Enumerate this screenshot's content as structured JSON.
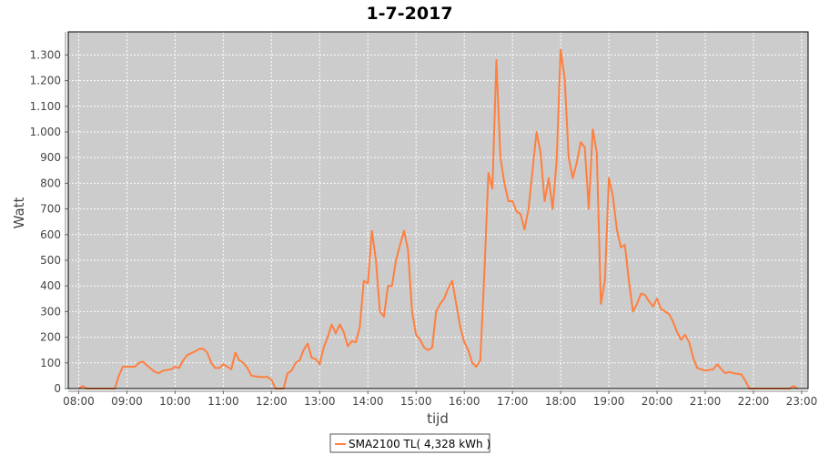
{
  "chart_data": {
    "type": "line",
    "title": "1-7-2017",
    "xlabel": "tijd",
    "ylabel": "Watt",
    "xlim": [
      "07:47",
      "23:08"
    ],
    "ylim": [
      0,
      1390
    ],
    "grid": true,
    "legend_placement": "bottom",
    "background_color": "#cccccc",
    "series_color": "#ff7f3f",
    "x_ticks": [
      "08:00",
      "09:00",
      "10:00",
      "11:00",
      "12:00",
      "13:00",
      "14:00",
      "15:00",
      "16:00",
      "17:00",
      "18:00",
      "19:00",
      "20:00",
      "21:00",
      "22:00",
      "23:00"
    ],
    "y_ticks": [
      0,
      100,
      200,
      300,
      400,
      500,
      600,
      700,
      800,
      900,
      1000,
      1100,
      1200,
      1300
    ],
    "y_tick_labels": [
      "0",
      "100",
      "200",
      "300",
      "400",
      "500",
      "600",
      "700",
      "800",
      "900",
      "1.000",
      "1.100",
      "1.200",
      "1.300"
    ],
    "series": [
      {
        "name": "SMA2100 TL( 4,328 kWh )",
        "x": [
          "08:00",
          "08:05",
          "08:10",
          "08:45",
          "08:50",
          "08:55",
          "09:00",
          "09:10",
          "09:15",
          "09:20",
          "09:25",
          "09:35",
          "09:40",
          "09:45",
          "09:55",
          "10:00",
          "10:05",
          "10:10",
          "10:15",
          "10:25",
          "10:30",
          "10:35",
          "10:40",
          "10:45",
          "10:50",
          "10:55",
          "11:00",
          "11:05",
          "11:10",
          "11:15",
          "11:20",
          "11:25",
          "11:30",
          "11:35",
          "11:45",
          "11:55",
          "12:00",
          "12:05",
          "12:15",
          "12:20",
          "12:25",
          "12:30",
          "12:35",
          "12:40",
          "12:45",
          "12:50",
          "12:55",
          "13:00",
          "13:05",
          "13:10",
          "13:15",
          "13:20",
          "13:25",
          "13:30",
          "13:35",
          "13:40",
          "13:45",
          "13:50",
          "13:55",
          "14:00",
          "14:05",
          "14:10",
          "14:15",
          "14:20",
          "14:25",
          "14:30",
          "14:35",
          "14:40",
          "14:45",
          "14:50",
          "14:55",
          "15:00",
          "15:05",
          "15:10",
          "15:15",
          "15:20",
          "15:25",
          "15:30",
          "15:35",
          "15:40",
          "15:45",
          "15:50",
          "15:55",
          "16:00",
          "16:05",
          "16:10",
          "16:15",
          "16:20",
          "16:25",
          "16:30",
          "16:35",
          "16:40",
          "16:45",
          "16:50",
          "16:55",
          "17:00",
          "17:05",
          "17:10",
          "17:15",
          "17:20",
          "17:25",
          "17:30",
          "17:35",
          "17:40",
          "17:45",
          "17:50",
          "17:55",
          "18:00",
          "18:05",
          "18:10",
          "18:15",
          "18:20",
          "18:25",
          "18:30",
          "18:35",
          "18:40",
          "18:45",
          "18:50",
          "18:55",
          "19:00",
          "19:05",
          "19:10",
          "19:15",
          "19:20",
          "19:25",
          "19:30",
          "19:35",
          "19:40",
          "19:45",
          "19:50",
          "19:55",
          "20:00",
          "20:05",
          "20:10",
          "20:15",
          "20:20",
          "20:25",
          "20:30",
          "20:35",
          "20:40",
          "20:45",
          "20:50",
          "20:55",
          "21:00",
          "21:10",
          "21:15",
          "21:20",
          "21:25",
          "21:30",
          "21:35",
          "21:45",
          "21:50",
          "21:55",
          "22:45",
          "22:50",
          "22:55"
        ],
        "values": [
          0,
          10,
          0,
          0,
          50,
          85,
          85,
          85,
          100,
          105,
          90,
          65,
          60,
          70,
          75,
          85,
          80,
          110,
          130,
          145,
          155,
          155,
          140,
          100,
          80,
          80,
          95,
          85,
          75,
          140,
          110,
          100,
          80,
          50,
          45,
          45,
          35,
          0,
          0,
          60,
          70,
          100,
          110,
          150,
          175,
          120,
          115,
          95,
          160,
          200,
          250,
          215,
          250,
          220,
          165,
          185,
          180,
          240,
          420,
          410,
          615,
          500,
          300,
          280,
          400,
          400,
          500,
          560,
          615,
          540,
          300,
          210,
          190,
          160,
          150,
          160,
          300,
          330,
          350,
          390,
          420,
          330,
          240,
          180,
          150,
          100,
          85,
          110,
          450,
          840,
          780,
          1280,
          900,
          800,
          730,
          730,
          690,
          680,
          620,
          700,
          850,
          1000,
          920,
          730,
          820,
          700,
          890,
          1320,
          1210,
          900,
          820,
          880,
          960,
          940,
          700,
          1010,
          920,
          330,
          420,
          820,
          750,
          620,
          550,
          560,
          420,
          300,
          330,
          370,
          365,
          340,
          320,
          350,
          310,
          300,
          290,
          260,
          220,
          190,
          210,
          180,
          120,
          80,
          75,
          70,
          75,
          95,
          75,
          60,
          65,
          60,
          55,
          30,
          0,
          0,
          10,
          0
        ]
      }
    ]
  }
}
